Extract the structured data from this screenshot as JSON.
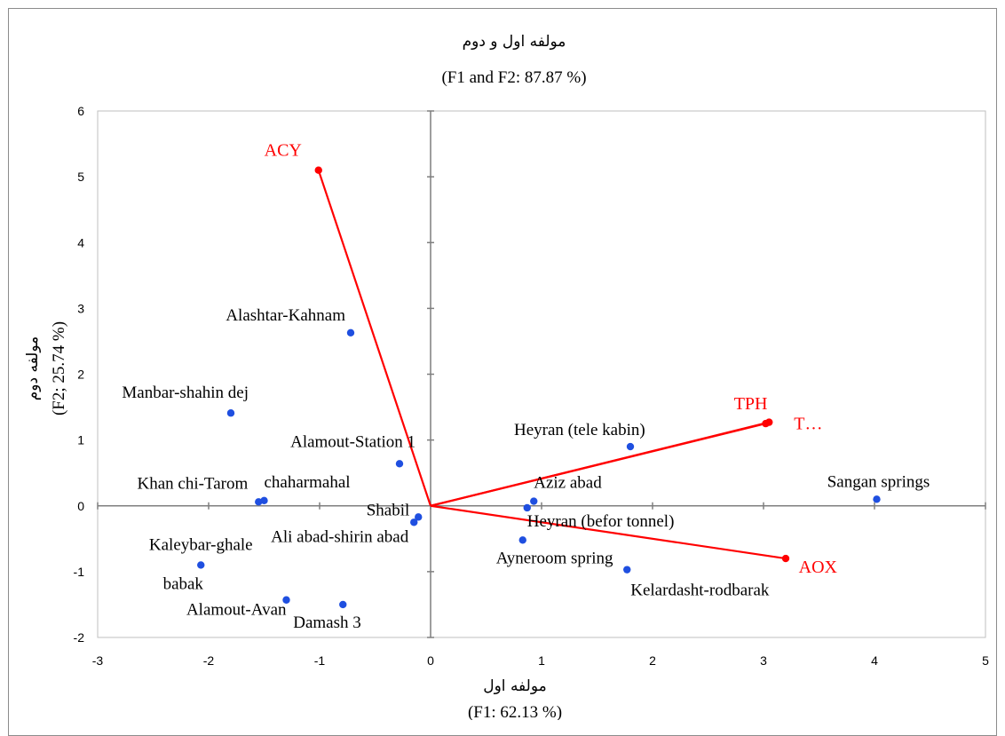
{
  "chart_data": {
    "type": "scatter",
    "subtype": "pca-biplot",
    "title": "مولفه اول و دوم",
    "subtitle": "(F1 and F2: 87.87 %)",
    "xlabel": "مولفه اول",
    "xlabel_sub": "(F1: 62.13 %)",
    "ylabel": "مولفه دوم",
    "ylabel_sub": "(F2; 25.74 %)",
    "xlim": [
      -3,
      5
    ],
    "ylim": [
      -2,
      6
    ],
    "xticks": [
      "-3",
      "-2",
      "-1",
      "0",
      "1",
      "2",
      "3",
      "4",
      "5"
    ],
    "yticks": [
      "-2",
      "-1",
      "0",
      "1",
      "2",
      "3",
      "4",
      "5",
      "6"
    ],
    "grid": false,
    "observations": {
      "color": "#1f4fe0",
      "points": [
        {
          "label": "Alashtar-Kahnam",
          "x": -0.72,
          "y": 2.63
        },
        {
          "label": "Manbar-shahin dej",
          "x": -1.8,
          "y": 1.41
        },
        {
          "label": "Alamout-Station 1",
          "x": -0.28,
          "y": 0.64
        },
        {
          "label": "Khan chi-Tarom",
          "x": -1.55,
          "y": 0.06
        },
        {
          "label": "chaharmahal",
          "x": -1.5,
          "y": 0.08
        },
        {
          "label": "Shabil",
          "x": -0.11,
          "y": -0.17
        },
        {
          "label": "Ali abad-shirin abad",
          "x": -0.15,
          "y": -0.25
        },
        {
          "label": "Kaleybar-ghale",
          "label2": "babak",
          "x": -2.07,
          "y": -0.9
        },
        {
          "label": "Alamout-Avan",
          "x": -1.3,
          "y": -1.43
        },
        {
          "label": "Damash 3",
          "x": -0.79,
          "y": -1.5
        },
        {
          "label": "Heyran (tele kabin)",
          "x": 1.8,
          "y": 0.9
        },
        {
          "label": "Aziz abad",
          "x": 0.93,
          "y": 0.07
        },
        {
          "label": "Heyran (befor tonnel)",
          "x": 0.87,
          "y": -0.03
        },
        {
          "label": "Ayneroom spring",
          "x": 0.83,
          "y": -0.52
        },
        {
          "label": "Kelardasht-rodbarak",
          "x": 1.77,
          "y": -0.97
        },
        {
          "label": "Sangan springs",
          "x": 4.02,
          "y": 0.1
        }
      ]
    },
    "variables": {
      "color": "#ff0000",
      "vectors": [
        {
          "label": "ACY",
          "x": -1.01,
          "y": 5.1
        },
        {
          "label": "TPH",
          "x": 3.02,
          "y": 1.25
        },
        {
          "label": "T…",
          "x": 3.05,
          "y": 1.27
        },
        {
          "label": "AOX",
          "x": 3.2,
          "y": -0.8
        }
      ]
    }
  }
}
